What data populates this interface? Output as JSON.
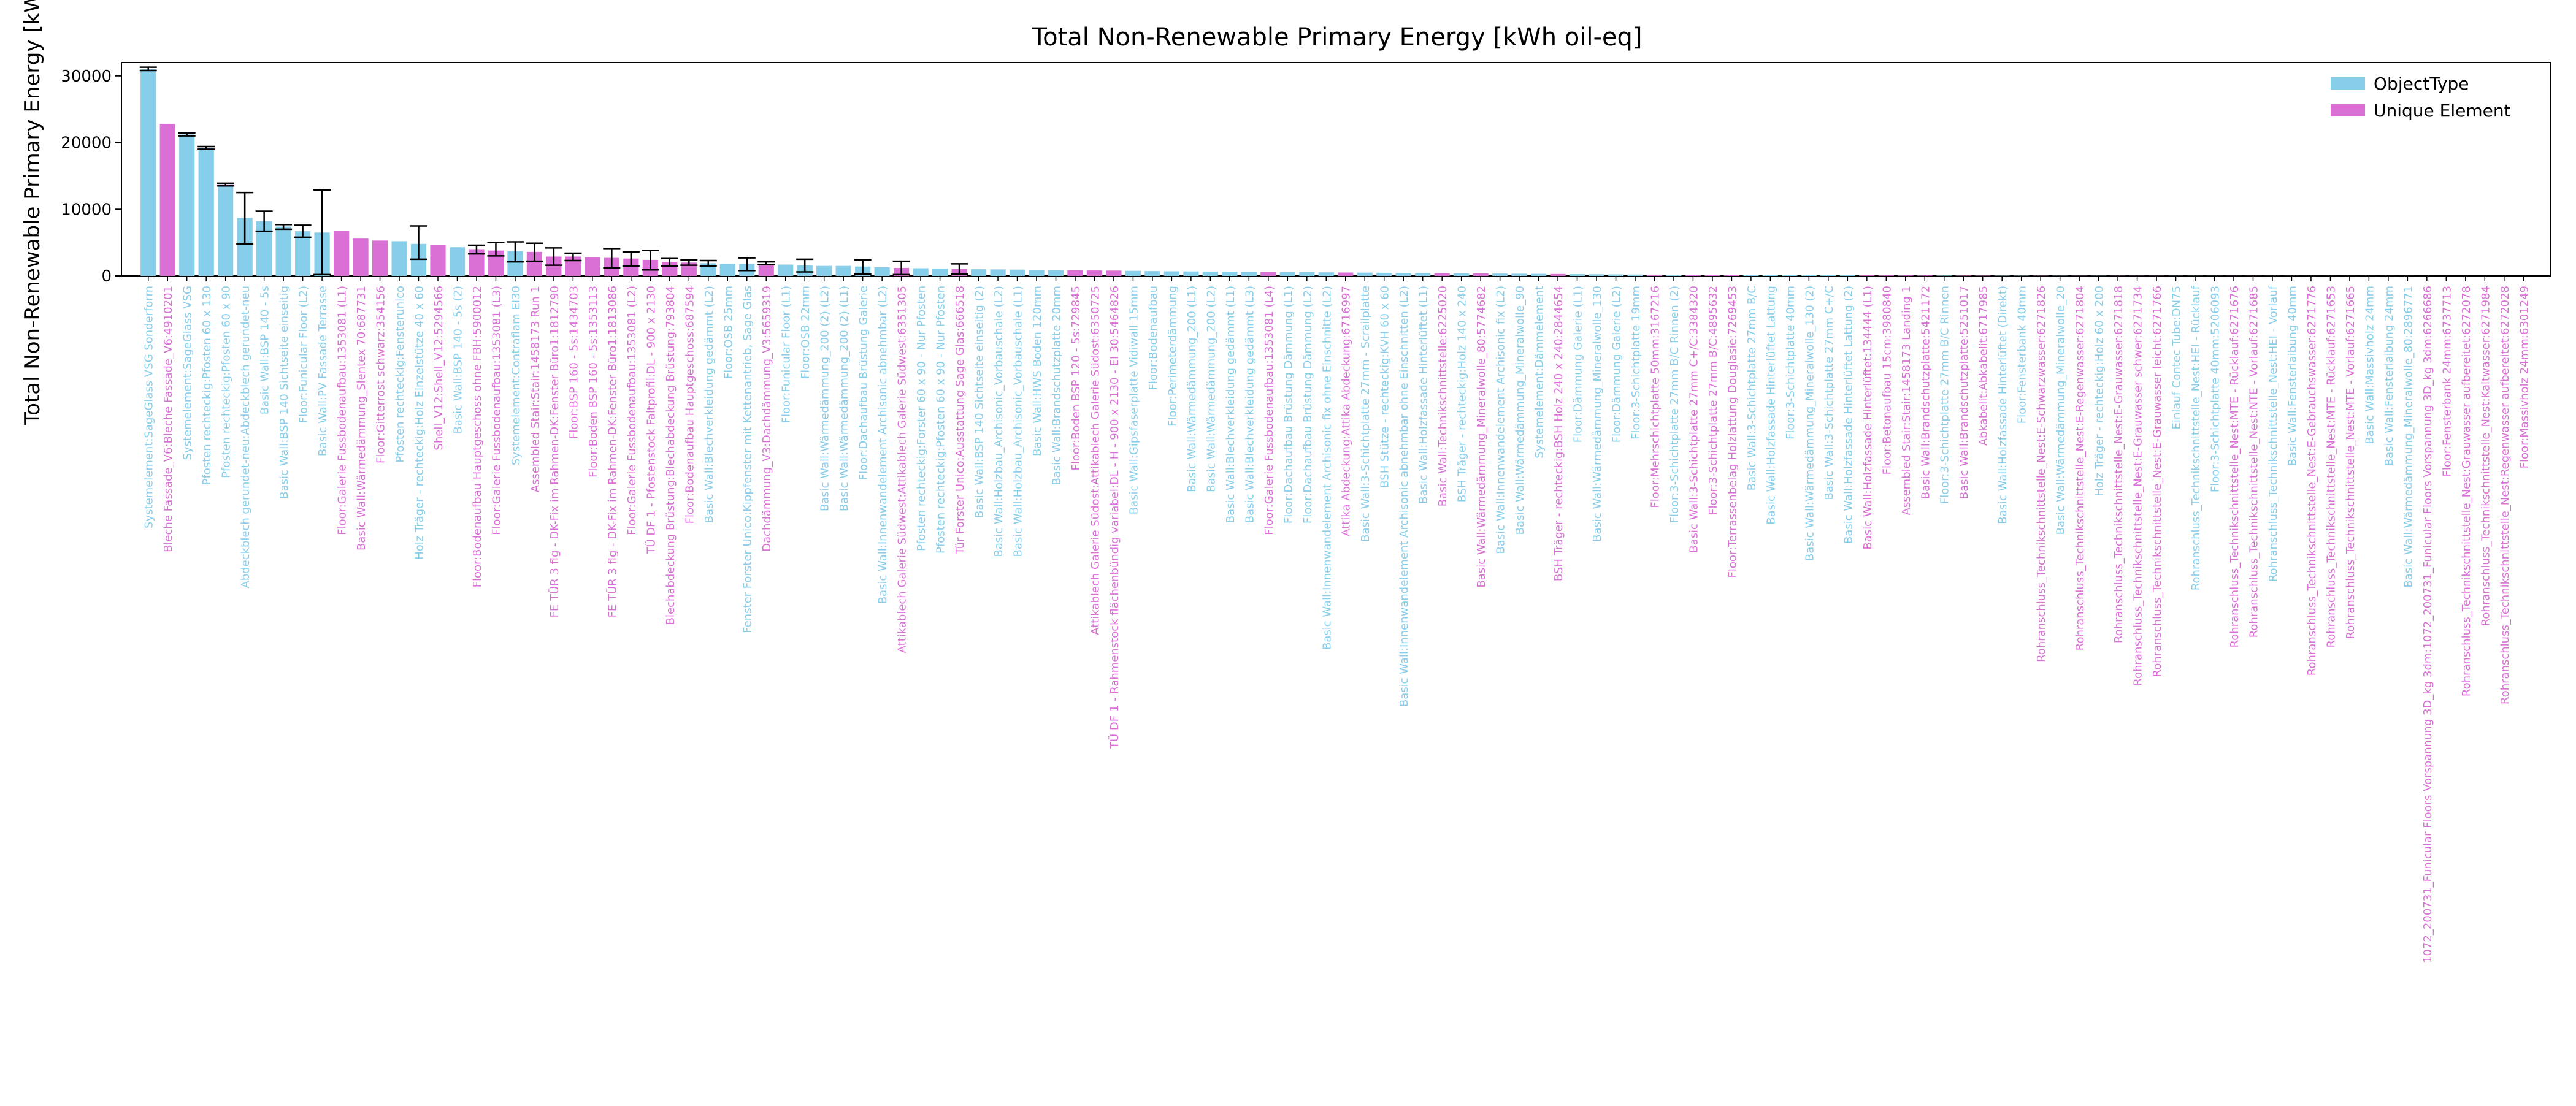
{
  "chart_data": {
    "type": "bar",
    "title": "Total Non-Renewable Primary Energy [kWh oil-eq]",
    "xlabel": "",
    "ylabel": "Total Non-Renewable Primary Energy [kWh oil-eq]",
    "ylim": [
      0,
      32000
    ],
    "yticks": [
      0,
      10000,
      20000,
      30000
    ],
    "ytick_labels": [
      "0",
      "10000",
      "20000",
      "30000"
    ],
    "grid": false,
    "legend_position": "top-right",
    "series": [
      {
        "name": "ObjectType",
        "color": "#87ceeb"
      },
      {
        "name": "Unique Element",
        "color": "#da70d6"
      }
    ],
    "categories": [
      "Systemelement:SageGlass VSG Sonderform",
      "Bleche Fassade_V6:Bleche Fassade_V6:4910201",
      "Systemelement:SageGlass VSG",
      "Pfosten rechteckig:Pfosten 60 x 130",
      "Pfosten rechteckig:Pfosten 60 x 90",
      "Abdeckblech gerundet-neu:Abdeckblech gerundet-neu",
      "Basic Wall:BSP 140 - 5s",
      "Basic Wall:BSP 140 Sichtseite einseitig",
      "Floor:Funicular Floor (L2)",
      "Basic Wall:PV Fassade Terrasse",
      "Floor:Galerie Fussbodenaufbau:1353081 (L1)",
      "Basic Wall:Wärmedämmung_Slentex 70:687731",
      "Floor:Gitterrost schwarz:354156",
      "Pfosten rechteckig:Fensterunico",
      "Holz Träger - rechteckig:Holz Einzelstütze 40 x 60",
      "Shell_V12:Shell_V12:5294566",
      "Basic Wall:BSP 140 - 5s (2)",
      "Floor:Bodenaufbau Hauptgeschoss ohne FBH:5900012",
      "Floor:Galerie Fussbodenaufbau:1353081 (L3)",
      "Systemelement:Contraflam EI30",
      "Assembled Stair:Stair:1458173 Run 1",
      "FE TÜR 3 flg - DK-Fix im Rahmen-DK:Fenster Büro1:1812790",
      "Floor:BSP 160 - 5s:1434703",
      "Floor:Boden BSP 160 - 5s:1353113",
      "FE TÜR 3 flg - DK-Fix im Rahmen-DK:Fenster Büro1:1813086",
      "Floor:Galerie Fussbodenaufbau:1353081 (L2)",
      "TÜ DF 1 - Pfostenstock Faltprofil:DL - 900 x 2130",
      "Blechabdeckung Brüstung:Blechabdeckung Brüstung:793804",
      "Floor:Bodenaufbau Hauptgeschoss:687594",
      "Basic Wall:Blechverkleidung gedämmt (L2)",
      "Floor:OSB 25mm",
      "Fenster Forster Unico:Kippfenster mit Kettenantrieb, Sage Glas",
      "Dachdämmung_V3:Dachdämmung_V3:5659319",
      "Floor:Funicular Floor (L1)",
      "Floor:OSB 22mm",
      "Basic Wall:Wärmedämmung_200 (2) (L2)",
      "Basic Wall:Wärmedämmung_200 (2) (L1)",
      "Floor:Dachaufbau Brüstung Galerie",
      "Basic Wall:Innenwandelement Archisonic abnehmbar (L2)",
      "Attikablech Galerie Südwest:Attikablech Galerie Südwest:6351305",
      "Pfosten rechteckig:Forster 60 x 90 - Nur Pfosten",
      "Pfosten rechteckig:Pfosten 60 x 90 - Nur Pfosten",
      "Tür Forster Unico:Ausstattung Sage Glas:666518",
      "Basic Wall:BSP 140 Sichtseite einseitig (2)",
      "Basic Wall:Holzbau_Archisonic_Vorbauschale (L2)",
      "Basic Wall:Holzbau_Archisonic_Vorbauschale (L1)",
      "Basic Wall:HWS Boden 120mm",
      "Basic Wall:Brandschutzplatte 20mm",
      "Floor:Boden BSP 120 - 5s:729845",
      "Attikablech Galerie Südost:Attikablech Galerie Südost:6350725",
      "TÜ DF 1 - Rahmenstock flächenbündig variabel:DL - H - 900 x 2130 - EI 30:5464826",
      "Basic Wall:Gipsfaserplatte Vidiwall 15mm",
      "Floor:Bodenaufbau",
      "Floor:Perimeterdämmung",
      "Basic Wall:Wärmedämmung_200 (L1)",
      "Basic Wall:Wärmedämmung_200 (L2)",
      "Basic Wall:Blechverkleidung gedämmt (L1)",
      "Basic Wall:Blechverkleidung gedämmt (L3)",
      "Floor:Galerie Fussbodenaufbau:1353081 (L4)",
      "Floor:Dachaufbau Brüstung Dämmung (L1)",
      "Floor:Dachaufbau Brüstung Dämmung (L2)",
      "Basic Wall:Innenwandelement Archisonic fix ohne Einschnitte (L2)",
      "Attika Abdeckung:Attika Abdeckung:6716997",
      "Basic Wall:3-Schichtplatte 27mm - Scrailplatte",
      "BSH Stütze - rechteckig:KVH 60 x 60",
      "Basic Wall:Innenwandelement Archisonic abnehmbar ohne Einschnitten (L2)",
      "Basic Wall:Holzfassade Hinterlüftet (L1)",
      "Basic Wall:Technikschnittstelle:6225020",
      "BSH Träger - rechteckig:Holz 140 x 240",
      "Basic Wall:Wärmedämmung_Mineralwolle_80:5774682",
      "Basic Wall:Innenwandelement Archisonic fix (L2)",
      "Basic Wall:Wärmedämmung_Mineralwolle_90",
      "Systemelement:Dämmelement",
      "BSH Träger - rechteckig:BSH Holz 240 x 240:2844654",
      "Floor:Dämmung Galerie (L1)",
      "Basic Wall:Wärmedämmung_Mineralwolle_130",
      "Floor:Dämmung Galerie (L2)",
      "Floor:3-Schichtplatte 19mm",
      "Floor:Mehrschichtplatte 50mm:3167216",
      "Floor:3-Schichtplatte 27mm B/C Rinnen (2)",
      "Basic Wall:3-Schichtplatte 27mm C+/C:3384320",
      "Floor:3-Schichtplatte 27mm B/C:4895632",
      "Floor:Terrassenbelag Holzlattung Douglasie:7269453",
      "Basic Wall:3-Schichtplatte 27mm B/C",
      "Basic Wall:Holzfassade Hinterlüftet Lattung",
      "Floor:3-Schichtplatte 40mm",
      "Basic Wall:Wärmedämmung_Mineralwolle_130 (2)",
      "Basic Wall:3-Schichtplatte 27mm C+/C",
      "Basic Wall:Holzfassade Hinterlüftet Lattung (2)",
      "Basic Wall:Holzfassade Hinterlüftet:134444 (L1)",
      "Floor:Betonaufbau 15cm:3980840",
      "Assembled Stair:Stair:1458173 Landing 1",
      "Basic Wall:Brandschutzplatte:5421172",
      "Floor:3-Schichtplatte 27mm B/C Rinnen",
      "Basic Wall:Brandschutzplatte:5251017",
      "Abkabelit:Abkabelit:6717985",
      "Basic Wall:Holzfassade Hinterlüftet (Direkt)",
      "Floor:Fensterbank 40mm",
      "Rohranschluss_Technikschnittstelle_Nest:E-Schwarzwasser:6271826",
      "Basic Wall:Wärmedämmung_Mineralwolle_20",
      "Rohranschluss_Technikschnittstelle_Nest:E-Regenwasser:6271804",
      "Holz Träger - rechteckig:Holz 60 x 200",
      "Rohranschluss_Technikschnittstelle_Nest:E-Grauwasser:6271818",
      "Rohranschluss_Technikschnittstelle_Nest:E-Grauwasser schwer:6271734",
      "Rohranschluss_Technikschnittstelle_Nest:E-Grauwasser leicht:6271766",
      "Einlauf Contec Tube:DN75",
      "Rohranschluss_Technikschnittstelle_Nest:HEI - Rücklauf",
      "Floor:3-Schichtplatte 40mm:5206093",
      "Rohranschluss_Technikschnittstelle_Nest:MTE - Rücklauf:6271676",
      "Rohranschluss_Technikschnittstelle_Nest:NTE - Vorlauf:6271685",
      "Rohranschluss_Technikschnittstelle_Nest:HEI - Vorlauf",
      "Basic Wall:Fensterlaibung 40mm",
      "Rohranschluss_Technikschnittstelle_Nest:E-Gebrauchswasser:6271776",
      "Rohranschluss_Technikschnittstelle_Nest:MTE - Rücklauf:6271653",
      "Rohranschluss_Technikschnittstelle_Nest:MTE - Vorlauf:6271665",
      "Basic Wall:Massivholz 24mm",
      "Basic Wall:Fensterlaibung 24mm",
      "Basic Wall:Wärmedämmung_Mineralwolle_80:2896771",
      "1072_200731_Funicular Floors Vorspannung 3D_kg 3dm:1072_200731_Funicular Floors Vorspannung 3D_kg 3dm:6266686",
      "Floor:Fensterbank 24mm:6737713",
      "Rohranschluss_Technikschnittstelle_Nest:Grauwasser aufbereitet:6272078",
      "Rohranschluss_Technikschnittstelle_Nest:Kaltwasser:6271984",
      "Rohranschluss_Technikschnittstelle_Nest:Regenwasser aufbereitet:6272028",
      "Floor:Massivholz 24mm:6301249"
    ],
    "groups": [
      0,
      1,
      0,
      0,
      0,
      0,
      0,
      0,
      0,
      0,
      1,
      1,
      1,
      0,
      0,
      1,
      0,
      1,
      1,
      0,
      1,
      1,
      1,
      1,
      1,
      1,
      1,
      1,
      1,
      0,
      0,
      0,
      1,
      0,
      0,
      0,
      0,
      0,
      0,
      1,
      0,
      0,
      1,
      0,
      0,
      0,
      0,
      0,
      1,
      1,
      1,
      0,
      0,
      0,
      0,
      0,
      0,
      0,
      1,
      0,
      0,
      0,
      1,
      0,
      0,
      0,
      0,
      1,
      0,
      1,
      0,
      0,
      0,
      1,
      0,
      0,
      0,
      0,
      1,
      0,
      1,
      1,
      1,
      0,
      0,
      0,
      0,
      0,
      0,
      1,
      1,
      1,
      1,
      0,
      1,
      1,
      0,
      0,
      1,
      0,
      1,
      0,
      1,
      1,
      1,
      0,
      0,
      0,
      1,
      1,
      0,
      0,
      1,
      1,
      1,
      0,
      0,
      0,
      1,
      1,
      1,
      1,
      1,
      1
    ],
    "values": [
      31000,
      22800,
      21200,
      19200,
      13700,
      8700,
      8200,
      7400,
      6700,
      6500,
      6800,
      5600,
      5300,
      5200,
      4800,
      4600,
      4300,
      4000,
      3800,
      3700,
      3600,
      2900,
      2900,
      2800,
      2700,
      2600,
      2400,
      2100,
      2000,
      1900,
      1800,
      1800,
      1700,
      1700,
      1600,
      1500,
      1500,
      1400,
      1300,
      1200,
      1150,
      1100,
      1050,
      1000,
      980,
      950,
      900,
      880,
      850,
      820,
      800,
      760,
      720,
      690,
      670,
      650,
      630,
      610,
      590,
      570,
      550,
      530,
      510,
      490,
      470,
      450,
      430,
      410,
      390,
      370,
      350,
      330,
      310,
      290,
      270,
      250,
      230,
      210,
      190,
      170,
      150,
      140,
      130,
      120,
      110,
      100,
      95,
      90,
      85,
      80,
      75,
      70,
      65,
      60,
      55,
      50,
      45,
      40,
      35,
      30,
      28,
      26,
      24,
      22,
      20,
      18,
      16,
      14,
      12,
      11,
      10,
      9,
      8,
      7,
      6,
      5,
      5,
      4,
      4,
      3,
      3,
      2,
      2,
      1
    ],
    "errors": [
      {
        "index": 0,
        "low": 30800,
        "high": 31300
      },
      {
        "index": 2,
        "low": 21000,
        "high": 21400
      },
      {
        "index": 3,
        "low": 19000,
        "high": 19400
      },
      {
        "index": 4,
        "low": 13500,
        "high": 13900
      },
      {
        "index": 5,
        "low": 4800,
        "high": 12500
      },
      {
        "index": 6,
        "low": 6700,
        "high": 9700
      },
      {
        "index": 7,
        "low": 7000,
        "high": 7700
      },
      {
        "index": 8,
        "low": 5800,
        "high": 7600
      },
      {
        "index": 9,
        "low": 200,
        "high": 12900
      },
      {
        "index": 14,
        "low": 2500,
        "high": 7500
      },
      {
        "index": 17,
        "low": 3300,
        "high": 4600
      },
      {
        "index": 18,
        "low": 3000,
        "high": 5000
      },
      {
        "index": 19,
        "low": 2100,
        "high": 5100
      },
      {
        "index": 20,
        "low": 2200,
        "high": 4900
      },
      {
        "index": 21,
        "low": 1600,
        "high": 4200
      },
      {
        "index": 22,
        "low": 2300,
        "high": 3400
      },
      {
        "index": 24,
        "low": 1200,
        "high": 4100
      },
      {
        "index": 25,
        "low": 1500,
        "high": 3600
      },
      {
        "index": 26,
        "low": 900,
        "high": 3800
      },
      {
        "index": 27,
        "low": 1500,
        "high": 2600
      },
      {
        "index": 28,
        "low": 1600,
        "high": 2400
      },
      {
        "index": 29,
        "low": 1500,
        "high": 2300
      },
      {
        "index": 31,
        "low": 800,
        "high": 2700
      },
      {
        "index": 32,
        "low": 1700,
        "high": 2100
      },
      {
        "index": 34,
        "low": 600,
        "high": 2500
      },
      {
        "index": 37,
        "low": 300,
        "high": 2400
      },
      {
        "index": 39,
        "low": 200,
        "high": 2200
      },
      {
        "index": 42,
        "low": 300,
        "high": 1800
      }
    ]
  }
}
